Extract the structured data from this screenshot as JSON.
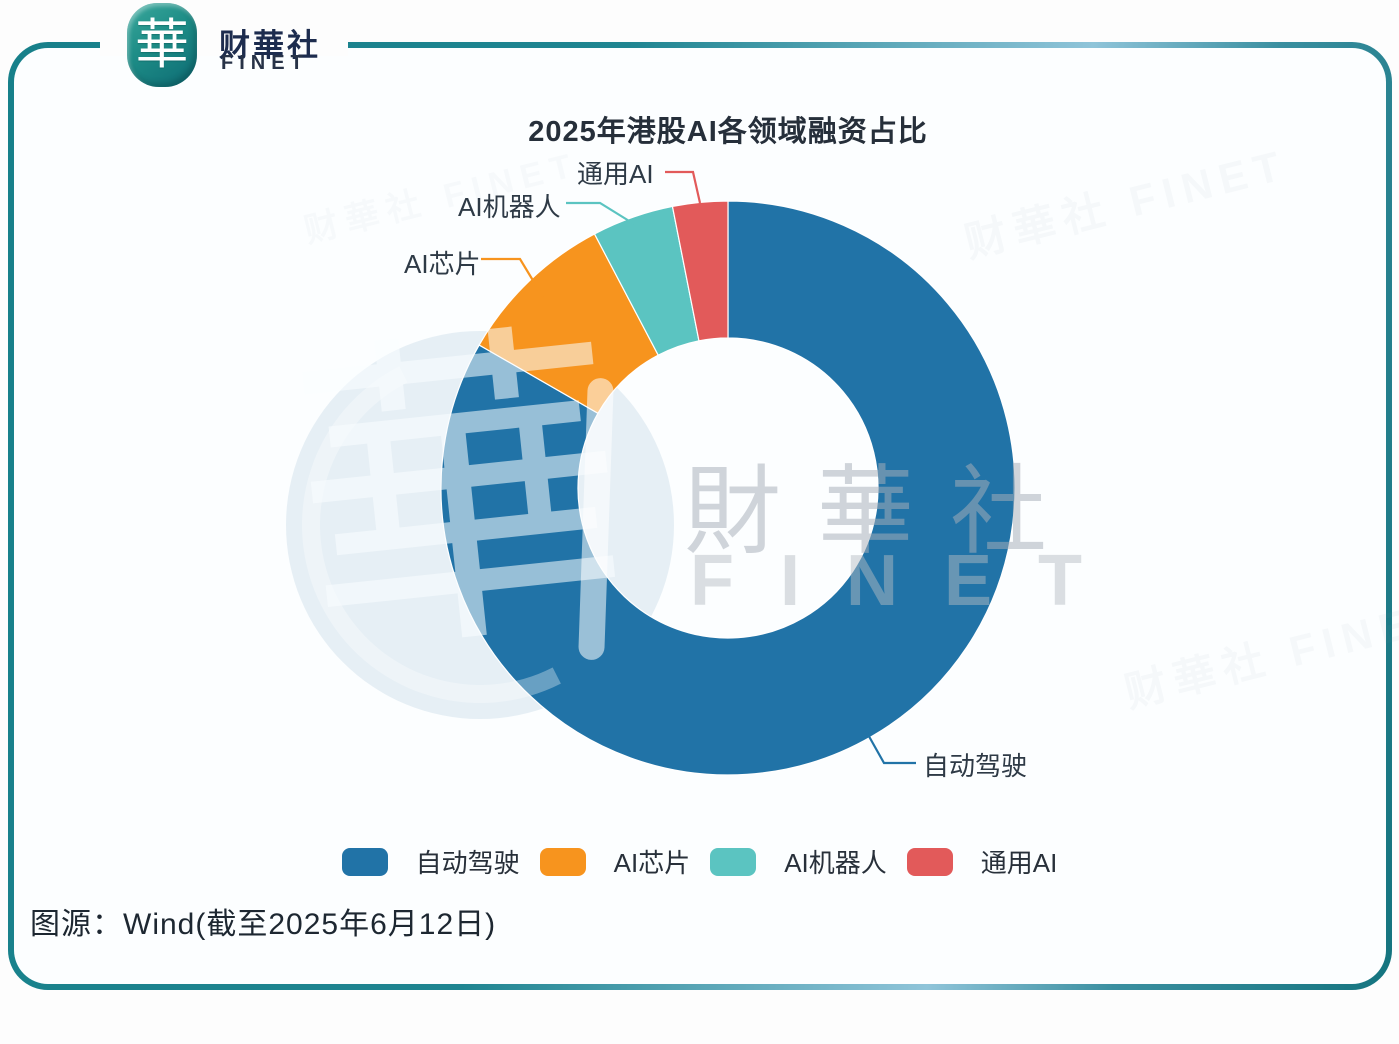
{
  "brand": {
    "logo_glyph": "華",
    "name_cn": "财華社",
    "name_en": "FINET"
  },
  "chart_data": {
    "type": "pie",
    "subtype": "donut",
    "title": "2025年港股AI各领域融资占比",
    "series": [
      {
        "label": "自动驾驶",
        "value": 83.3,
        "color": "#2173A7"
      },
      {
        "label": "AI芯片",
        "value": 9.0,
        "color": "#F7941E"
      },
      {
        "label": "AI机器人",
        "value": 4.6,
        "color": "#5BC4C1"
      },
      {
        "label": "通用AI",
        "value": 3.1,
        "color": "#E25A5A"
      }
    ],
    "value_unit": "percent-of-total (estimated from arc angles; chart shows no numeric labels)",
    "start_angle_deg": 0,
    "direction": "clockwise",
    "inner_radius_ratio": 0.52,
    "legend_position": "bottom",
    "callout_labels": [
      "自动驾驶",
      "AI芯片",
      "AI机器人",
      "通用AI"
    ]
  },
  "watermark": {
    "center_cn": "財華社",
    "center_en": "FINET",
    "emblem_glyph": "華",
    "faint_repeat": "财華社 FINET"
  },
  "source_note": "图源：Wind(截至2025年6月12日)",
  "colors": {
    "frame_border": "#17808A",
    "title_text": "#262F3A",
    "label_text": "#2E3A46",
    "source_text": "#1D2731"
  }
}
